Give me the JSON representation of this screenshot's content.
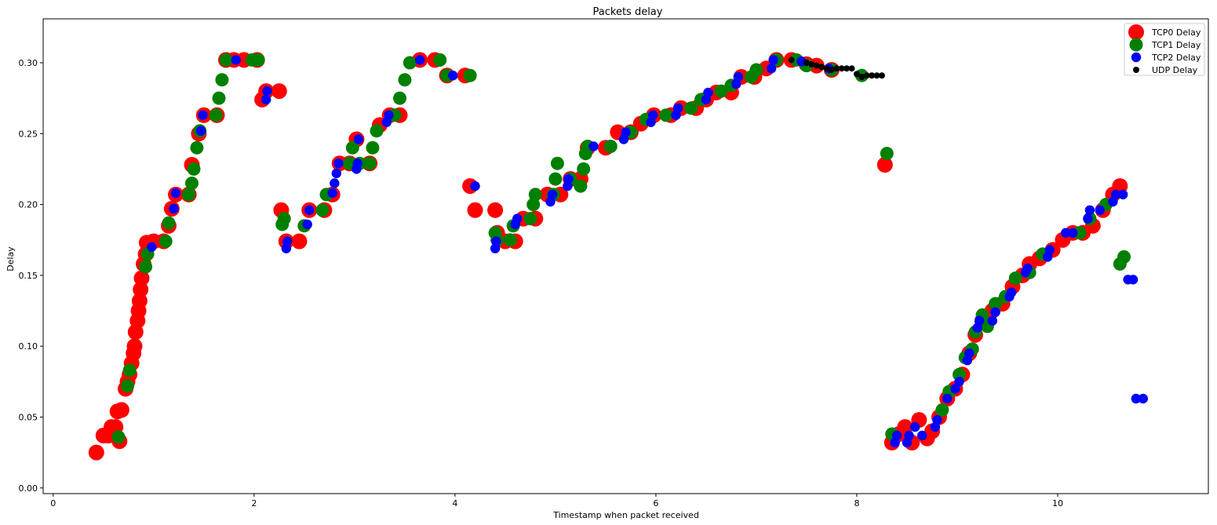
{
  "chart_data": {
    "type": "scatter",
    "title": "Packets delay",
    "xlabel": "Timestamp when packet received",
    "ylabel": "Delay",
    "xlim": [
      -0.1,
      11.5
    ],
    "ylim": [
      -0.004,
      0.331
    ],
    "xticks": [
      0,
      2,
      4,
      6,
      8,
      10
    ],
    "yticks": [
      0.0,
      0.05,
      0.1,
      0.15,
      0.2,
      0.25,
      0.3
    ],
    "ytick_labels": [
      "0.00",
      "0.05",
      "0.10",
      "0.15",
      "0.20",
      "0.25",
      "0.30"
    ],
    "grid": false,
    "legend_position": "top-right",
    "series": [
      {
        "name": "TCP0 Delay",
        "color": "#ff0000",
        "marker_size": "large",
        "points": [
          [
            0.43,
            0.025
          ],
          [
            0.5,
            0.037
          ],
          [
            0.55,
            0.037
          ],
          [
            0.58,
            0.043
          ],
          [
            0.62,
            0.043
          ],
          [
            0.64,
            0.054
          ],
          [
            0.66,
            0.033
          ],
          [
            0.68,
            0.055
          ],
          [
            0.72,
            0.07
          ],
          [
            0.74,
            0.075
          ],
          [
            0.76,
            0.08
          ],
          [
            0.78,
            0.088
          ],
          [
            0.8,
            0.095
          ],
          [
            0.81,
            0.1
          ],
          [
            0.82,
            0.11
          ],
          [
            0.84,
            0.118
          ],
          [
            0.85,
            0.125
          ],
          [
            0.86,
            0.132
          ],
          [
            0.87,
            0.14
          ],
          [
            0.88,
            0.148
          ],
          [
            0.9,
            0.158
          ],
          [
            0.92,
            0.165
          ],
          [
            0.93,
            0.173
          ],
          [
            1.0,
            0.174
          ],
          [
            1.1,
            0.174
          ],
          [
            1.15,
            0.185
          ],
          [
            1.18,
            0.197
          ],
          [
            1.22,
            0.207
          ],
          [
            1.35,
            0.207
          ],
          [
            1.38,
            0.228
          ],
          [
            1.45,
            0.25
          ],
          [
            1.5,
            0.263
          ],
          [
            1.63,
            0.263
          ],
          [
            1.72,
            0.302
          ],
          [
            1.8,
            0.302
          ],
          [
            1.9,
            0.302
          ],
          [
            2.03,
            0.302
          ],
          [
            2.08,
            0.274
          ],
          [
            2.12,
            0.28
          ],
          [
            2.25,
            0.28
          ],
          [
            2.27,
            0.196
          ],
          [
            2.32,
            0.174
          ],
          [
            2.45,
            0.174
          ],
          [
            2.55,
            0.196
          ],
          [
            2.7,
            0.196
          ],
          [
            2.78,
            0.207
          ],
          [
            2.85,
            0.229
          ],
          [
            2.95,
            0.229
          ],
          [
            3.02,
            0.246
          ],
          [
            3.15,
            0.229
          ],
          [
            3.25,
            0.256
          ],
          [
            3.35,
            0.263
          ],
          [
            3.45,
            0.263
          ],
          [
            3.65,
            0.302
          ],
          [
            3.8,
            0.302
          ],
          [
            3.92,
            0.291
          ],
          [
            4.1,
            0.291
          ],
          [
            4.15,
            0.213
          ],
          [
            4.2,
            0.196
          ],
          [
            4.4,
            0.196
          ],
          [
            4.42,
            0.18
          ],
          [
            4.5,
            0.174
          ],
          [
            4.6,
            0.174
          ],
          [
            4.68,
            0.19
          ],
          [
            4.8,
            0.19
          ],
          [
            4.92,
            0.207
          ],
          [
            5.05,
            0.207
          ],
          [
            5.15,
            0.218
          ],
          [
            5.25,
            0.218
          ],
          [
            5.32,
            0.24
          ],
          [
            5.5,
            0.24
          ],
          [
            5.62,
            0.251
          ],
          [
            5.75,
            0.251
          ],
          [
            5.85,
            0.257
          ],
          [
            5.98,
            0.263
          ],
          [
            6.15,
            0.263
          ],
          [
            6.25,
            0.268
          ],
          [
            6.4,
            0.268
          ],
          [
            6.5,
            0.274
          ],
          [
            6.6,
            0.279
          ],
          [
            6.75,
            0.279
          ],
          [
            6.85,
            0.29
          ],
          [
            6.98,
            0.29
          ],
          [
            7.1,
            0.296
          ],
          [
            7.2,
            0.302
          ],
          [
            7.35,
            0.302
          ],
          [
            7.5,
            0.299
          ],
          [
            7.6,
            0.298
          ],
          [
            7.75,
            0.295
          ],
          [
            8.28,
            0.228
          ],
          [
            8.35,
            0.032
          ],
          [
            8.42,
            0.038
          ],
          [
            8.48,
            0.043
          ],
          [
            8.55,
            0.032
          ],
          [
            8.62,
            0.048
          ],
          [
            8.7,
            0.035
          ],
          [
            8.75,
            0.04
          ],
          [
            8.82,
            0.05
          ],
          [
            8.9,
            0.063
          ],
          [
            8.98,
            0.07
          ],
          [
            9.05,
            0.08
          ],
          [
            9.12,
            0.095
          ],
          [
            9.18,
            0.108
          ],
          [
            9.25,
            0.118
          ],
          [
            9.35,
            0.125
          ],
          [
            9.45,
            0.13
          ],
          [
            9.55,
            0.142
          ],
          [
            9.65,
            0.15
          ],
          [
            9.72,
            0.158
          ],
          [
            9.82,
            0.162
          ],
          [
            9.95,
            0.168
          ],
          [
            10.05,
            0.175
          ],
          [
            10.15,
            0.18
          ],
          [
            10.25,
            0.18
          ],
          [
            10.35,
            0.185
          ],
          [
            10.45,
            0.196
          ],
          [
            10.55,
            0.207
          ],
          [
            10.62,
            0.213
          ]
        ]
      },
      {
        "name": "TCP1 Delay",
        "color": "#008000",
        "marker_size": "medium",
        "points": [
          [
            0.65,
            0.036
          ],
          [
            0.74,
            0.072
          ],
          [
            0.76,
            0.083
          ],
          [
            0.92,
            0.156
          ],
          [
            0.94,
            0.165
          ],
          [
            1.12,
            0.174
          ],
          [
            1.15,
            0.187
          ],
          [
            1.35,
            0.207
          ],
          [
            1.38,
            0.215
          ],
          [
            1.4,
            0.225
          ],
          [
            1.43,
            0.24
          ],
          [
            1.46,
            0.252
          ],
          [
            1.62,
            0.263
          ],
          [
            1.65,
            0.275
          ],
          [
            1.68,
            0.288
          ],
          [
            1.72,
            0.302
          ],
          [
            1.98,
            0.302
          ],
          [
            2.04,
            0.302
          ],
          [
            2.28,
            0.186
          ],
          [
            2.3,
            0.19
          ],
          [
            2.5,
            0.185
          ],
          [
            2.68,
            0.196
          ],
          [
            2.72,
            0.207
          ],
          [
            2.95,
            0.229
          ],
          [
            2.98,
            0.24
          ],
          [
            3.05,
            0.229
          ],
          [
            3.15,
            0.229
          ],
          [
            3.18,
            0.24
          ],
          [
            3.22,
            0.252
          ],
          [
            3.4,
            0.263
          ],
          [
            3.45,
            0.275
          ],
          [
            3.5,
            0.288
          ],
          [
            3.55,
            0.3
          ],
          [
            3.85,
            0.302
          ],
          [
            3.92,
            0.291
          ],
          [
            4.15,
            0.291
          ],
          [
            4.4,
            0.18
          ],
          [
            4.42,
            0.175
          ],
          [
            4.55,
            0.175
          ],
          [
            4.58,
            0.185
          ],
          [
            4.75,
            0.19
          ],
          [
            4.78,
            0.2
          ],
          [
            4.8,
            0.207
          ],
          [
            4.98,
            0.207
          ],
          [
            5.0,
            0.218
          ],
          [
            5.02,
            0.229
          ],
          [
            5.15,
            0.218
          ],
          [
            5.25,
            0.213
          ],
          [
            5.28,
            0.225
          ],
          [
            5.3,
            0.236
          ],
          [
            5.32,
            0.241
          ],
          [
            5.55,
            0.241
          ],
          [
            5.75,
            0.251
          ],
          [
            5.9,
            0.26
          ],
          [
            6.1,
            0.263
          ],
          [
            6.35,
            0.268
          ],
          [
            6.45,
            0.274
          ],
          [
            6.65,
            0.28
          ],
          [
            6.75,
            0.284
          ],
          [
            6.95,
            0.29
          ],
          [
            7.0,
            0.295
          ],
          [
            7.2,
            0.302
          ],
          [
            7.4,
            0.302
          ],
          [
            7.5,
            0.298
          ],
          [
            7.75,
            0.295
          ],
          [
            8.05,
            0.291
          ],
          [
            8.3,
            0.236
          ],
          [
            8.35,
            0.038
          ],
          [
            8.85,
            0.055
          ],
          [
            8.92,
            0.068
          ],
          [
            9.02,
            0.08
          ],
          [
            9.08,
            0.092
          ],
          [
            9.15,
            0.098
          ],
          [
            9.18,
            0.11
          ],
          [
            9.25,
            0.122
          ],
          [
            9.3,
            0.114
          ],
          [
            9.38,
            0.13
          ],
          [
            9.48,
            0.135
          ],
          [
            9.58,
            0.148
          ],
          [
            9.72,
            0.152
          ],
          [
            9.85,
            0.165
          ],
          [
            10.22,
            0.18
          ],
          [
            10.32,
            0.19
          ],
          [
            10.48,
            0.2
          ],
          [
            10.62,
            0.158
          ],
          [
            10.66,
            0.163
          ]
        ]
      },
      {
        "name": "TCP2 Delay",
        "color": "#0000ff",
        "marker_size": "small",
        "points": [
          [
            0.98,
            0.17
          ],
          [
            1.2,
            0.197
          ],
          [
            1.22,
            0.208
          ],
          [
            1.47,
            0.252
          ],
          [
            1.49,
            0.263
          ],
          [
            1.82,
            0.302
          ],
          [
            2.12,
            0.274
          ],
          [
            2.13,
            0.28
          ],
          [
            2.32,
            0.169
          ],
          [
            2.33,
            0.174
          ],
          [
            2.53,
            0.186
          ],
          [
            2.55,
            0.196
          ],
          [
            2.78,
            0.208
          ],
          [
            2.8,
            0.215
          ],
          [
            2.82,
            0.222
          ],
          [
            2.84,
            0.229
          ],
          [
            3.02,
            0.225
          ],
          [
            3.03,
            0.229
          ],
          [
            3.04,
            0.246
          ],
          [
            3.32,
            0.258
          ],
          [
            3.34,
            0.263
          ],
          [
            3.65,
            0.302
          ],
          [
            3.98,
            0.291
          ],
          [
            4.2,
            0.213
          ],
          [
            4.4,
            0.169
          ],
          [
            4.41,
            0.174
          ],
          [
            4.6,
            0.186
          ],
          [
            4.62,
            0.19
          ],
          [
            4.95,
            0.202
          ],
          [
            4.97,
            0.207
          ],
          [
            5.12,
            0.213
          ],
          [
            5.13,
            0.218
          ],
          [
            5.38,
            0.241
          ],
          [
            5.68,
            0.246
          ],
          [
            5.7,
            0.251
          ],
          [
            5.95,
            0.258
          ],
          [
            5.97,
            0.263
          ],
          [
            6.2,
            0.263
          ],
          [
            6.22,
            0.268
          ],
          [
            6.5,
            0.274
          ],
          [
            6.52,
            0.279
          ],
          [
            6.8,
            0.285
          ],
          [
            6.82,
            0.29
          ],
          [
            7.15,
            0.296
          ],
          [
            7.17,
            0.302
          ],
          [
            7.45,
            0.301
          ],
          [
            7.72,
            0.296
          ],
          [
            8.38,
            0.032
          ],
          [
            8.4,
            0.037
          ],
          [
            8.5,
            0.032
          ],
          [
            8.52,
            0.037
          ],
          [
            8.58,
            0.043
          ],
          [
            8.65,
            0.037
          ],
          [
            8.78,
            0.043
          ],
          [
            8.8,
            0.048
          ],
          [
            8.9,
            0.063
          ],
          [
            8.98,
            0.07
          ],
          [
            9.02,
            0.075
          ],
          [
            9.1,
            0.09
          ],
          [
            9.12,
            0.095
          ],
          [
            9.2,
            0.113
          ],
          [
            9.22,
            0.118
          ],
          [
            9.35,
            0.118
          ],
          [
            9.38,
            0.124
          ],
          [
            9.52,
            0.135
          ],
          [
            9.54,
            0.138
          ],
          [
            9.68,
            0.152
          ],
          [
            9.7,
            0.155
          ],
          [
            9.9,
            0.163
          ],
          [
            9.92,
            0.168
          ],
          [
            10.08,
            0.18
          ],
          [
            10.15,
            0.18
          ],
          [
            10.3,
            0.19
          ],
          [
            10.32,
            0.196
          ],
          [
            10.42,
            0.196
          ],
          [
            10.55,
            0.202
          ],
          [
            10.58,
            0.207
          ],
          [
            10.65,
            0.207
          ],
          [
            10.7,
            0.147
          ],
          [
            10.75,
            0.147
          ],
          [
            10.78,
            0.063
          ],
          [
            10.85,
            0.063
          ]
        ]
      },
      {
        "name": "UDP Delay",
        "color": "#000000",
        "marker_size": "tiny",
        "points": [
          [
            7.35,
            0.302
          ],
          [
            7.5,
            0.3
          ],
          [
            7.55,
            0.299
          ],
          [
            7.6,
            0.298
          ],
          [
            7.65,
            0.297
          ],
          [
            7.7,
            0.296
          ],
          [
            7.75,
            0.295
          ],
          [
            7.8,
            0.296
          ],
          [
            7.85,
            0.296
          ],
          [
            7.9,
            0.296
          ],
          [
            7.95,
            0.296
          ],
          [
            8.0,
            0.292
          ],
          [
            8.05,
            0.29
          ],
          [
            8.1,
            0.291
          ],
          [
            8.15,
            0.291
          ],
          [
            8.2,
            0.291
          ],
          [
            8.25,
            0.291
          ]
        ]
      }
    ]
  }
}
